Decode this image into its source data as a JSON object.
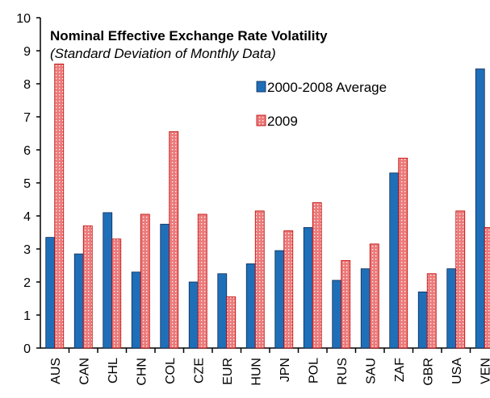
{
  "chart_data": {
    "type": "bar",
    "annotation_title": "Nominal Effective Exchange Rate Volatility",
    "annotation_subtitle": "(Standard Deviation of Monthly Data)",
    "categories": [
      "AUS",
      "CAN",
      "CHL",
      "CHN",
      "COL",
      "CZE",
      "EUR",
      "HUN",
      "JPN",
      "POL",
      "RUS",
      "SAU",
      "ZAF",
      "GBR",
      "USA",
      "VEN"
    ],
    "series": [
      {
        "name": "2000-2008 Average",
        "color": "#1f6fb8",
        "values": [
          3.35,
          2.85,
          4.1,
          2.3,
          3.75,
          2.0,
          2.25,
          2.55,
          2.95,
          3.65,
          2.05,
          2.4,
          5.3,
          1.7,
          2.4,
          8.45
        ]
      },
      {
        "name": "2009",
        "color": "#ec7b7b",
        "values": [
          8.6,
          3.7,
          3.3,
          4.05,
          6.55,
          4.05,
          1.55,
          4.15,
          3.55,
          4.4,
          2.65,
          3.15,
          5.75,
          2.25,
          4.15,
          3.65
        ]
      }
    ],
    "ylim": [
      0,
      10
    ],
    "yticks": [
      0,
      1,
      2,
      3,
      4,
      5,
      6,
      7,
      8,
      9,
      10
    ],
    "grid": false
  }
}
